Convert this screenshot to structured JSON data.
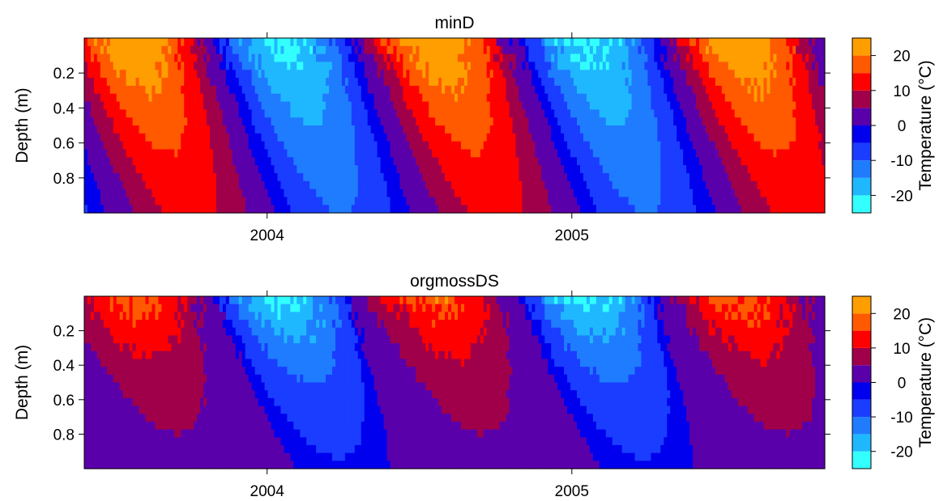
{
  "chart_data": [
    {
      "type": "heatmap",
      "title": "minD",
      "xlabel": "",
      "ylabel": "Depth (m)",
      "y_reversed": true,
      "ylim": [
        0.0,
        1.0
      ],
      "yticks": [
        0.2,
        0.4,
        0.6,
        0.8
      ],
      "ytick_labels": [
        "0.2",
        "0.4",
        "0.6",
        "0.8"
      ],
      "xlim_years": [
        2003.4,
        2005.83
      ],
      "xticks": [
        2004,
        2005
      ],
      "xtick_labels": [
        "2004",
        "2005"
      ],
      "colorbar": {
        "label": "Temperature (°C)",
        "levels": [
          -25,
          -20,
          -15,
          -10,
          -5,
          0,
          5,
          10,
          15,
          20,
          25
        ],
        "colors": [
          "#33ffff",
          "#1fb8ff",
          "#1f7cff",
          "#1a3dff",
          "#0000ee",
          "#5a00aa",
          "#a0004a",
          "#ff0000",
          "#ff5a00",
          "#ff9e00",
          "#ffff00"
        ],
        "ticks": [
          -20,
          -10,
          0,
          10,
          20
        ],
        "tick_labels": [
          "-20",
          "-10",
          "0",
          "10",
          "20"
        ]
      },
      "notes_summer_surface_max": 25,
      "winter_min_surface": -23
    },
    {
      "type": "heatmap",
      "title": "orgmossDS",
      "xlabel": "",
      "ylabel": "Depth (m)",
      "y_reversed": true,
      "ylim": [
        0.0,
        1.0
      ],
      "yticks": [
        0.2,
        0.4,
        0.6,
        0.8
      ],
      "ytick_labels": [
        "0.2",
        "0.4",
        "0.6",
        "0.8"
      ],
      "xlim_years": [
        2003.4,
        2005.83
      ],
      "xticks": [
        2004,
        2005
      ],
      "xtick_labels": [
        "2004",
        "2005"
      ],
      "colorbar": {
        "label": "Temperature (°C)",
        "levels": [
          -25,
          -20,
          -15,
          -10,
          -5,
          0,
          5,
          10,
          15,
          20,
          25
        ],
        "colors": [
          "#33ffff",
          "#1fb8ff",
          "#1f7cff",
          "#1a3dff",
          "#0000ee",
          "#5a00aa",
          "#a0004a",
          "#ff0000",
          "#ff5a00",
          "#ff9e00",
          "#ffff00"
        ],
        "ticks": [
          -20,
          -10,
          0,
          10,
          20
        ],
        "tick_labels": [
          "-20",
          "-10",
          "0",
          "10",
          "20"
        ]
      },
      "notes_summer_surface_max": 20,
      "winter_min_surface": -23
    }
  ]
}
